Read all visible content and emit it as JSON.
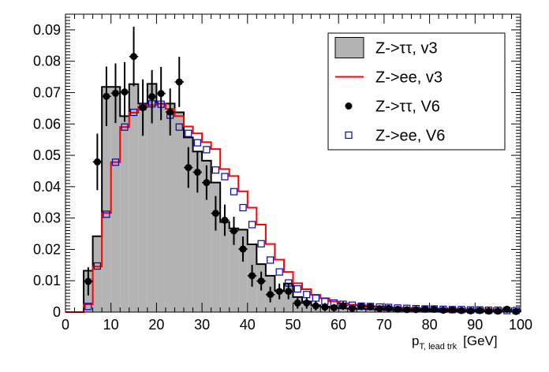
{
  "chart_data": {
    "type": "histogram",
    "title": "",
    "xlabel_main": "p",
    "xlabel_sub": "T, lead trk",
    "xlabel_unit": "[GeV]",
    "ylabel": "",
    "xlim": [
      0,
      100
    ],
    "ylim": [
      0,
      0.095
    ],
    "bin_width": 2,
    "x_ticks": [
      0,
      10,
      20,
      30,
      40,
      50,
      60,
      70,
      80,
      90,
      100
    ],
    "x_tick_labels": [
      "0",
      "10",
      "20",
      "30",
      "40",
      "50",
      "60",
      "70",
      "80",
      "90",
      "100"
    ],
    "y_ticks": [
      0,
      0.01,
      0.02,
      0.03,
      0.04,
      0.05,
      0.06,
      0.07,
      0.08,
      0.09
    ],
    "y_tick_labels": [
      "0",
      "0.01",
      "0.02",
      "0.03",
      "0.04",
      "0.05",
      "0.06",
      "0.07",
      "0.08",
      "0.09"
    ],
    "legend_position": "top-right",
    "series": [
      {
        "name": "Z->ττ, v3",
        "style": "filled-histogram",
        "color": "#b3b3b3",
        "edge_color": "#000000",
        "values": [
          0,
          0,
          0.0132,
          0.0242,
          0.0718,
          0.0718,
          0.0625,
          0.0727,
          0.0665,
          0.0728,
          0.0665,
          0.0665,
          0.0637,
          0.0557,
          0.0512,
          0.0483,
          0.0413,
          0.0287,
          0.0267,
          0.0263,
          0.0216,
          0.0153,
          0.0116,
          0.0069,
          0.0091,
          0.0048,
          0.0034,
          0.0022,
          0.0018,
          0.0014,
          0.0012,
          0.0011,
          0.001,
          0.0009,
          0.0008,
          0.0007,
          0.0006,
          0.0006,
          0.0005,
          0.0005,
          0.0004,
          0.0004,
          0.0003,
          0.0003,
          0.0003,
          0.0003,
          0.0002,
          0.0002,
          0.0002,
          0.0002
        ]
      },
      {
        "name": "Z->ee, v3",
        "style": "line-histogram",
        "color": "#ff0000",
        "values": [
          0,
          0,
          0.0025,
          0.0145,
          0.0316,
          0.0478,
          0.059,
          0.0636,
          0.0655,
          0.066,
          0.0664,
          0.0648,
          0.0625,
          0.0592,
          0.057,
          0.0542,
          0.052,
          0.0456,
          0.0434,
          0.0385,
          0.0333,
          0.0279,
          0.0217,
          0.0167,
          0.0128,
          0.0092,
          0.0073,
          0.0055,
          0.0044,
          0.0034,
          0.0028,
          0.0024,
          0.0022,
          0.0019,
          0.0018,
          0.0016,
          0.0014,
          0.0013,
          0.0012,
          0.0011,
          0.001,
          0.001,
          0.0009,
          0.0008,
          0.0008,
          0.0007,
          0.0007,
          0.0006,
          0.0006,
          0.0005
        ]
      },
      {
        "name": "Z->ττ, V6",
        "style": "markers-errorbars",
        "marker": "filled-circle",
        "color": "#000000",
        "x": [
          5,
          7,
          9,
          11,
          13,
          15,
          17,
          19,
          21,
          23,
          25,
          27,
          29,
          31,
          33,
          35,
          37,
          39,
          41,
          43,
          45,
          47,
          49,
          51,
          53,
          55,
          57,
          59,
          61,
          63,
          65,
          67,
          69,
          71,
          73,
          75,
          77,
          79,
          81,
          83,
          85,
          87,
          89,
          91,
          93,
          95,
          97,
          99
        ],
        "values": [
          0.0098,
          0.0479,
          0.0688,
          0.0698,
          0.0702,
          0.0815,
          0.0652,
          0.0687,
          0.0697,
          0.0638,
          0.0734,
          0.0461,
          0.0446,
          0.0413,
          0.0315,
          0.0293,
          0.0259,
          0.0201,
          0.0116,
          0.0099,
          0.0056,
          0.0066,
          0.0066,
          0.0029,
          0.0029,
          0.002,
          0.0016,
          0.0014,
          0.002,
          0.0012,
          0.0018,
          0.0017,
          0.0011,
          0.0012,
          0.0009,
          0.0008,
          0.0008,
          0.0009,
          0.0009,
          0.0006,
          0.0007,
          0.0005,
          0.0004,
          0.0005,
          0.0003,
          0.0003,
          0.0009,
          0.0002
        ],
        "errors": [
          0.0045,
          0.009,
          0.0095,
          0.0095,
          0.0095,
          0.0095,
          0.009,
          0.0085,
          0.0085,
          0.0075,
          0.008,
          0.0065,
          0.0065,
          0.0055,
          0.0055,
          0.005,
          0.0045,
          0.004,
          0.0035,
          0.003,
          0.0025,
          0.0025,
          0.0025,
          0.0018,
          0.0018,
          0.0015,
          0.0013,
          0.0012,
          0.0013,
          0.001,
          0.0012,
          0.0012,
          0.001,
          0.001,
          0.0009,
          0.0008,
          0.0008,
          0.0008,
          0.0008,
          0.0007,
          0.0007,
          0.0006,
          0.0005,
          0.0006,
          0.0004,
          0.0004,
          0.0008,
          0.0003
        ]
      },
      {
        "name": "Z->ee, V6",
        "style": "markers",
        "marker": "open-square",
        "color": "#0000cc",
        "x": [
          5,
          7,
          9,
          11,
          13,
          15,
          17,
          19,
          21,
          23,
          25,
          27,
          29,
          31,
          33,
          35,
          37,
          39,
          41,
          43,
          45,
          47,
          49,
          51,
          53,
          55,
          57,
          59,
          61,
          63,
          65,
          67,
          69,
          71,
          73,
          75,
          77,
          79,
          81,
          83,
          85,
          87,
          89,
          91,
          93,
          95,
          97,
          99
        ],
        "values": [
          0.0018,
          0.0147,
          0.0312,
          0.0478,
          0.059,
          0.0637,
          0.0655,
          0.0664,
          0.0663,
          0.0628,
          0.059,
          0.057,
          0.054,
          0.0518,
          0.0453,
          0.0432,
          0.0384,
          0.0333,
          0.0279,
          0.0218,
          0.0166,
          0.0128,
          0.0093,
          0.0074,
          0.0056,
          0.0045,
          0.0035,
          0.0029,
          0.0025,
          0.0022,
          0.0019,
          0.0018,
          0.0016,
          0.0015,
          0.0013,
          0.0012,
          0.0011,
          0.001,
          0.001,
          0.0009,
          0.0008,
          0.0008,
          0.0007,
          0.0007,
          0.0006,
          0.0006,
          0.0005,
          0.0005
        ]
      }
    ]
  }
}
